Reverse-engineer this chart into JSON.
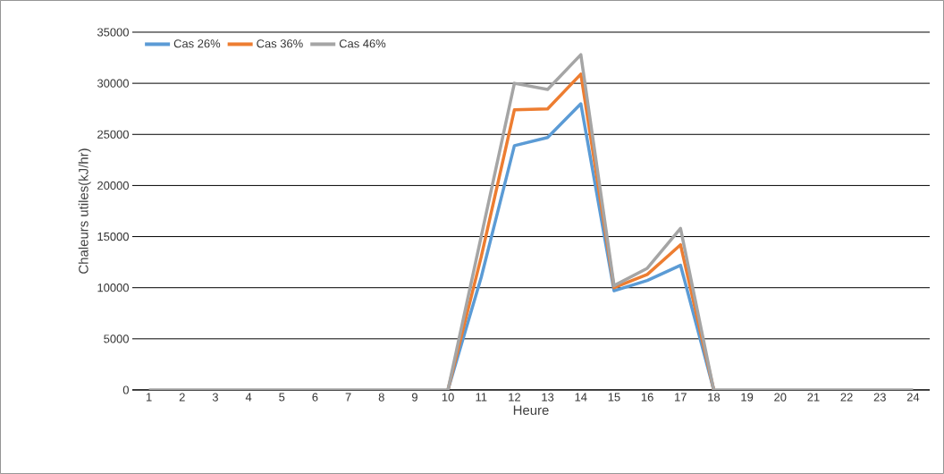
{
  "chart_data": {
    "type": "line",
    "xlabel": "Heure",
    "ylabel": "Chaleurs utiles(kJ/hr)",
    "categories": [
      "1",
      "2",
      "3",
      "4",
      "5",
      "6",
      "7",
      "8",
      "9",
      "10",
      "11",
      "12",
      "13",
      "14",
      "15",
      "16",
      "17",
      "18",
      "19",
      "20",
      "21",
      "22",
      "23",
      "24"
    ],
    "series": [
      {
        "name": "Cas 26%",
        "color": "#5b9bd5",
        "values": [
          null,
          null,
          null,
          null,
          null,
          null,
          null,
          null,
          null,
          0,
          11000,
          23900,
          24700,
          28000,
          9700,
          10700,
          12200,
          0,
          null,
          null,
          null,
          null,
          null,
          null
        ]
      },
      {
        "name": "Cas 36%",
        "color": "#ed7d31",
        "values": [
          null,
          null,
          null,
          null,
          null,
          null,
          null,
          null,
          null,
          0,
          13000,
          27400,
          27500,
          30900,
          10000,
          11300,
          14200,
          0,
          null,
          null,
          null,
          null,
          null,
          null
        ]
      },
      {
        "name": "Cas 46%",
        "color": "#a5a5a5",
        "values": [
          0,
          0,
          0,
          0,
          0,
          0,
          0,
          0,
          0,
          0,
          15000,
          30000,
          29400,
          32800,
          10200,
          11900,
          15800,
          0,
          0,
          0,
          0,
          0,
          0,
          0
        ]
      }
    ],
    "ylim": [
      0,
      35000
    ],
    "yticks": [
      0,
      5000,
      10000,
      15000,
      20000,
      25000,
      30000,
      35000
    ],
    "grid": "y",
    "legend": "top left",
    "marker": "none",
    "line_style": "solid"
  }
}
